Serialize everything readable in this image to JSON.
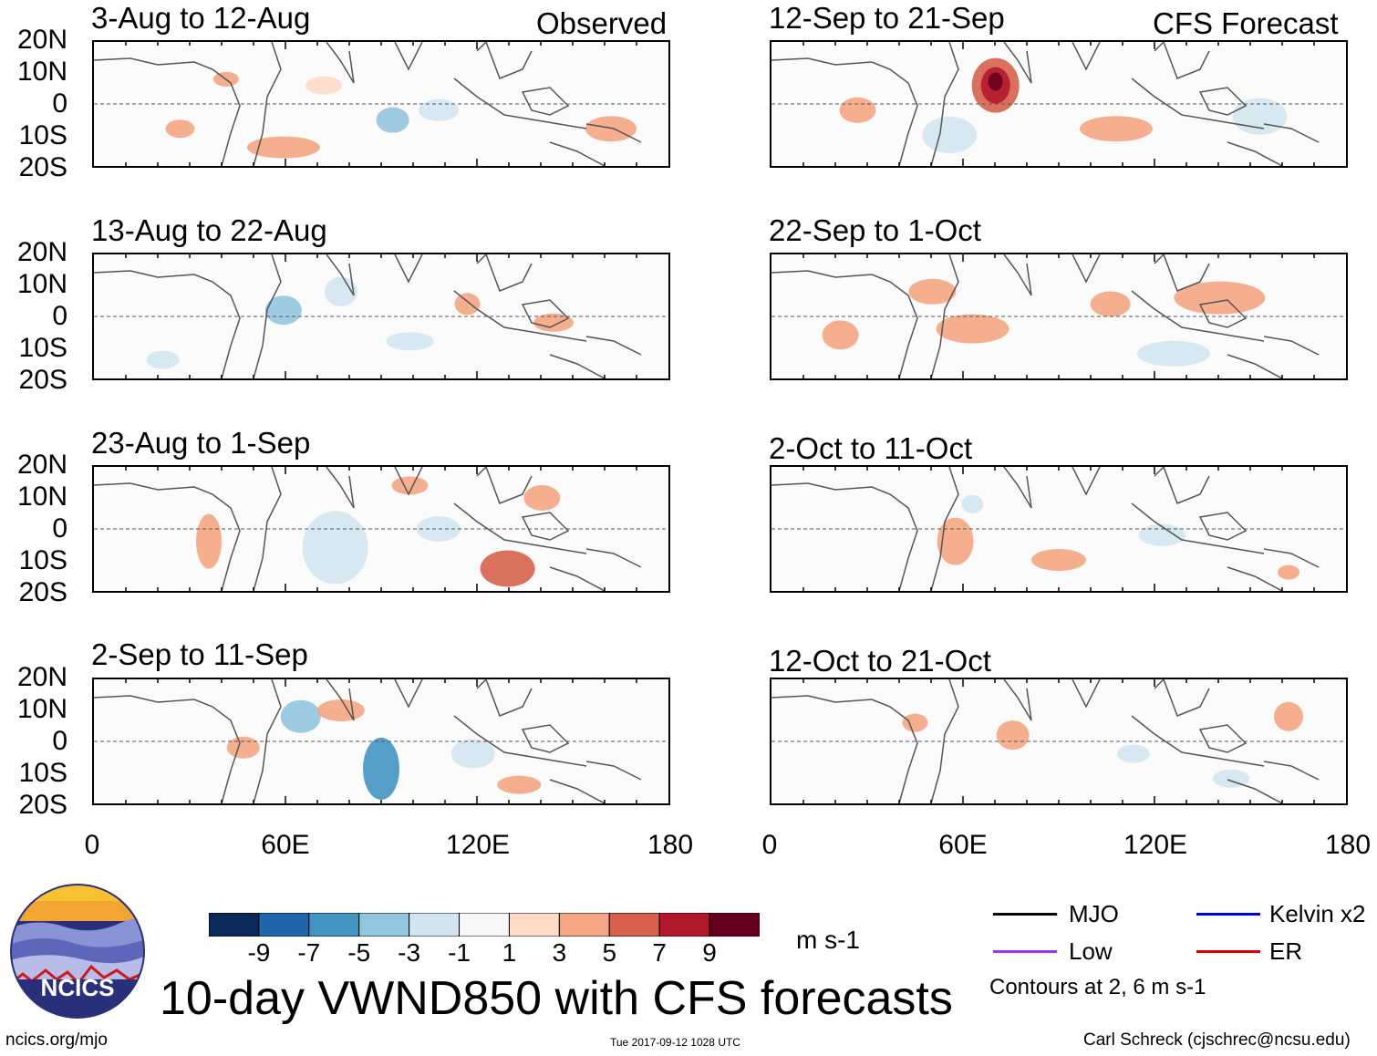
{
  "chart_data": {
    "type": "heatmap",
    "title": "10-day VWND850 with CFS forecasts",
    "variable": "VWND850",
    "units": "m s-1",
    "columns": [
      {
        "label": "Observed",
        "periods": [
          "3-Aug to 12-Aug",
          "13-Aug to 22-Aug",
          "23-Aug to 1-Sep",
          "2-Sep to 11-Sep"
        ]
      },
      {
        "label": "CFS Forecast",
        "periods": [
          "12-Sep to 21-Sep",
          "22-Sep to 1-Oct",
          "2-Oct to 11-Oct",
          "12-Oct to 21-Oct"
        ]
      }
    ],
    "lat_ticks": [
      "20N",
      "10N",
      "0",
      "10S",
      "20S"
    ],
    "lon_ticks": [
      "0",
      "60E",
      "120E",
      "180"
    ],
    "lat_range": [
      -20,
      20
    ],
    "lon_range": [
      0,
      180
    ],
    "colorbar": {
      "ticks": [
        "-9",
        "-7",
        "-5",
        "-3",
        "-1",
        "1",
        "3",
        "5",
        "7",
        "9"
      ],
      "colors": [
        "#0b2a5c",
        "#2166ac",
        "#4393c3",
        "#92c5de",
        "#d1e5f0",
        "#f7f7f7",
        "#fddbc7",
        "#f4a582",
        "#d6604d",
        "#b2182b",
        "#67001f"
      ]
    },
    "legend": [
      {
        "label": "MJO",
        "color": "#000000"
      },
      {
        "label": "Kelvin x2",
        "color": "#0000dd"
      },
      {
        "label": "Low",
        "color": "#9933ff"
      },
      {
        "label": "ER",
        "color": "#dd0000"
      }
    ],
    "contour_note": "Contours at 2, 6 m s-1"
  },
  "footer": {
    "url": "ncics.org/mjo",
    "timestamp": "Tue 2017-09-12 1028 UTC",
    "author": "Carl Schreck (cjschrec@ncsu.edu)",
    "logo_text": "NCICS"
  }
}
